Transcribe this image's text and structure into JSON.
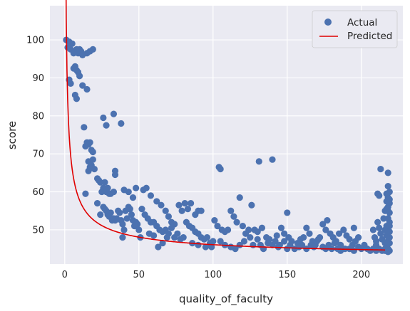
{
  "chart_data": {
    "type": "scatter",
    "xlabel": "quality_of_faculty",
    "ylabel": "score",
    "xlim": [
      -10,
      228
    ],
    "ylim": [
      41,
      109
    ],
    "xticks": [
      0,
      50,
      100,
      150,
      200
    ],
    "yticks": [
      50,
      60,
      70,
      80,
      90,
      100
    ],
    "grid": true,
    "legend_position": "top-right",
    "colors": {
      "actual": "#4c72b0",
      "predicted": "#e00000",
      "plot_bg": "#eaeaf2",
      "grid": "#ffffff"
    },
    "series": [
      {
        "name": "Actual",
        "kind": "scatter",
        "points": [
          [
            1,
            100
          ],
          [
            2,
            98
          ],
          [
            3,
            99.5
          ],
          [
            4,
            97.5
          ],
          [
            5,
            99
          ],
          [
            6,
            96.5
          ],
          [
            7,
            97
          ],
          [
            8,
            97.5
          ],
          [
            9,
            96.5
          ],
          [
            10,
            97.5
          ],
          [
            11,
            97
          ],
          [
            12,
            96
          ],
          [
            15,
            96.5
          ],
          [
            17,
            97
          ],
          [
            19,
            97.5
          ],
          [
            3,
            89.5
          ],
          [
            4,
            88.5
          ],
          [
            6,
            92.5
          ],
          [
            7,
            93
          ],
          [
            8,
            92
          ],
          [
            9,
            91.5
          ],
          [
            10,
            90.5
          ],
          [
            12,
            88
          ],
          [
            15,
            87
          ],
          [
            7,
            85.5
          ],
          [
            8,
            84.5
          ],
          [
            13,
            77
          ],
          [
            14,
            72
          ],
          [
            15,
            73
          ],
          [
            16,
            72.5
          ],
          [
            17,
            73
          ],
          [
            18,
            71
          ],
          [
            19,
            70.5
          ],
          [
            16,
            68
          ],
          [
            17,
            66.5
          ],
          [
            18,
            67
          ],
          [
            19,
            68.5
          ],
          [
            20,
            66
          ],
          [
            16,
            65.5
          ],
          [
            14,
            59.5
          ],
          [
            26,
            79.5
          ],
          [
            28,
            77.5
          ],
          [
            33,
            80.5
          ],
          [
            38,
            78
          ],
          [
            22,
            63.5
          ],
          [
            23,
            63
          ],
          [
            24,
            62.5
          ],
          [
            25,
            60
          ],
          [
            26,
            61
          ],
          [
            27,
            62.5
          ],
          [
            28,
            60
          ],
          [
            29,
            61
          ],
          [
            30,
            59.5
          ],
          [
            31,
            59.5
          ],
          [
            33,
            60
          ],
          [
            34,
            65.5
          ],
          [
            34,
            64.5
          ],
          [
            22,
            57
          ],
          [
            24,
            54
          ],
          [
            26,
            56
          ],
          [
            27,
            55.5
          ],
          [
            28,
            55
          ],
          [
            29,
            54
          ],
          [
            30,
            53.5
          ],
          [
            31,
            54.5
          ],
          [
            32,
            52.5
          ],
          [
            33,
            53
          ],
          [
            34,
            52.5
          ],
          [
            35,
            53
          ],
          [
            36,
            55
          ],
          [
            37,
            54.5
          ],
          [
            38,
            52.5
          ],
          [
            39,
            51.5
          ],
          [
            40,
            50
          ],
          [
            41,
            55
          ],
          [
            42,
            53
          ],
          [
            43,
            56
          ],
          [
            44,
            55.5
          ],
          [
            45,
            54
          ],
          [
            46,
            52.5
          ],
          [
            47,
            51
          ],
          [
            48,
            52
          ],
          [
            49,
            51.5
          ],
          [
            50,
            50
          ],
          [
            51,
            48
          ],
          [
            39,
            48
          ],
          [
            40,
            60.5
          ],
          [
            43,
            60
          ],
          [
            46,
            58.5
          ],
          [
            48,
            61
          ],
          [
            53,
            60.5
          ],
          [
            55,
            61
          ],
          [
            58,
            59
          ],
          [
            62,
            57.5
          ],
          [
            65,
            56.5
          ],
          [
            68,
            55
          ],
          [
            70,
            53.5
          ],
          [
            72,
            52
          ],
          [
            52,
            55.5
          ],
          [
            54,
            54
          ],
          [
            56,
            53
          ],
          [
            58,
            52
          ],
          [
            60,
            52
          ],
          [
            62,
            51
          ],
          [
            64,
            50
          ],
          [
            66,
            49.5
          ],
          [
            68,
            50
          ],
          [
            70,
            49
          ],
          [
            72,
            50.5
          ],
          [
            74,
            48
          ],
          [
            76,
            49
          ],
          [
            78,
            47.5
          ],
          [
            80,
            48
          ],
          [
            57,
            49
          ],
          [
            60,
            48.5
          ],
          [
            63,
            45.5
          ],
          [
            66,
            46.5
          ],
          [
            69,
            48
          ],
          [
            74,
            51.5
          ],
          [
            77,
            56.5
          ],
          [
            79,
            55
          ],
          [
            81,
            57
          ],
          [
            83,
            55.5
          ],
          [
            85,
            57
          ],
          [
            88,
            54
          ],
          [
            90,
            55
          ],
          [
            92,
            55
          ],
          [
            82,
            52
          ],
          [
            84,
            51
          ],
          [
            86,
            50.5
          ],
          [
            88,
            49.5
          ],
          [
            90,
            49
          ],
          [
            92,
            48
          ],
          [
            94,
            47.5
          ],
          [
            96,
            48
          ],
          [
            98,
            46.5
          ],
          [
            100,
            47
          ],
          [
            86,
            46.5
          ],
          [
            90,
            46
          ],
          [
            95,
            45.5
          ],
          [
            99,
            45.5
          ],
          [
            101,
            52.5
          ],
          [
            103,
            51
          ],
          [
            104,
            66.5
          ],
          [
            105,
            66
          ],
          [
            106,
            50
          ],
          [
            108,
            49.5
          ],
          [
            110,
            50
          ],
          [
            112,
            55
          ],
          [
            114,
            53.5
          ],
          [
            116,
            52
          ],
          [
            118,
            58.5
          ],
          [
            120,
            51
          ],
          [
            122,
            49
          ],
          [
            124,
            50
          ],
          [
            105,
            47
          ],
          [
            108,
            46
          ],
          [
            112,
            45.5
          ],
          [
            115,
            45
          ],
          [
            118,
            46
          ],
          [
            121,
            47
          ],
          [
            126,
            56.5
          ],
          [
            128,
            50
          ],
          [
            130,
            49.5
          ],
          [
            131,
            68
          ],
          [
            133,
            50.5
          ],
          [
            136,
            48
          ],
          [
            138,
            47.5
          ],
          [
            140,
            68.5
          ],
          [
            125,
            48
          ],
          [
            127,
            46
          ],
          [
            130,
            47.5
          ],
          [
            132,
            46
          ],
          [
            134,
            45
          ],
          [
            137,
            46.5
          ],
          [
            140,
            46
          ],
          [
            142,
            47
          ],
          [
            144,
            45.5
          ],
          [
            146,
            50.5
          ],
          [
            148,
            49
          ],
          [
            150,
            54.5
          ],
          [
            151,
            48
          ],
          [
            153,
            47
          ],
          [
            143,
            48.5
          ],
          [
            145,
            46
          ],
          [
            148,
            47
          ],
          [
            150,
            45
          ],
          [
            152,
            46
          ],
          [
            155,
            45
          ],
          [
            157,
            46.5
          ],
          [
            159,
            47.5
          ],
          [
            161,
            48
          ],
          [
            163,
            50.5
          ],
          [
            165,
            49
          ],
          [
            167,
            47
          ],
          [
            169,
            46
          ],
          [
            171,
            47.5
          ],
          [
            158,
            45.5
          ],
          [
            160,
            46
          ],
          [
            163,
            45
          ],
          [
            166,
            46
          ],
          [
            168,
            45.5
          ],
          [
            170,
            47
          ],
          [
            172,
            48
          ],
          [
            174,
            51.5
          ],
          [
            176,
            50
          ],
          [
            177,
            52.5
          ],
          [
            179,
            49
          ],
          [
            181,
            48
          ],
          [
            183,
            47
          ],
          [
            185,
            49
          ],
          [
            174,
            45.5
          ],
          [
            176,
            45
          ],
          [
            178,
            46
          ],
          [
            180,
            45
          ],
          [
            182,
            46.5
          ],
          [
            184,
            45
          ],
          [
            186,
            46
          ],
          [
            188,
            50
          ],
          [
            190,
            48.5
          ],
          [
            192,
            47.5
          ],
          [
            194,
            46
          ],
          [
            195,
            50.5
          ],
          [
            196,
            47
          ],
          [
            198,
            48
          ],
          [
            186,
            44.5
          ],
          [
            189,
            45
          ],
          [
            192,
            45
          ],
          [
            195,
            44.5
          ],
          [
            198,
            45.5
          ],
          [
            200,
            45
          ],
          [
            202,
            46
          ],
          [
            204,
            45
          ],
          [
            206,
            44.5
          ],
          [
            208,
            45
          ],
          [
            210,
            46
          ],
          [
            211,
            59.5
          ],
          [
            212,
            59
          ],
          [
            213,
            66
          ],
          [
            208,
            50
          ],
          [
            209,
            48
          ],
          [
            210,
            47
          ],
          [
            211,
            52
          ],
          [
            212,
            50.5
          ],
          [
            213,
            49
          ],
          [
            214,
            47.5
          ],
          [
            215,
            53
          ],
          [
            216,
            55
          ],
          [
            217,
            59.5
          ],
          [
            217,
            57.5
          ],
          [
            218,
            65
          ],
          [
            218,
            56
          ],
          [
            218,
            50
          ],
          [
            217,
            46
          ],
          [
            218,
            45
          ],
          [
            219,
            44.5
          ],
          [
            219,
            48
          ],
          [
            219,
            52
          ],
          [
            219,
            54.5
          ],
          [
            218,
            53
          ],
          [
            218,
            47
          ],
          [
            217,
            48.5
          ],
          [
            216,
            46.5
          ],
          [
            219,
            60
          ],
          [
            218,
            58.5
          ],
          [
            217,
            51
          ],
          [
            216,
            50
          ],
          [
            210,
            44.5
          ],
          [
            212,
            45
          ],
          [
            214,
            44.5
          ],
          [
            216,
            45
          ],
          [
            218,
            44.2
          ],
          [
            219,
            46.5
          ],
          [
            219,
            49.5
          ],
          [
            219,
            51
          ],
          [
            218,
            55
          ],
          [
            217,
            55.5
          ],
          [
            219,
            57
          ],
          [
            219,
            58
          ],
          [
            218,
            61.5
          ],
          [
            216,
            44.5
          ]
        ]
      },
      {
        "name": "Predicted",
        "kind": "line",
        "formula": "42.4 + 64.2 / (x + 0.02)^0.62"
      }
    ]
  }
}
